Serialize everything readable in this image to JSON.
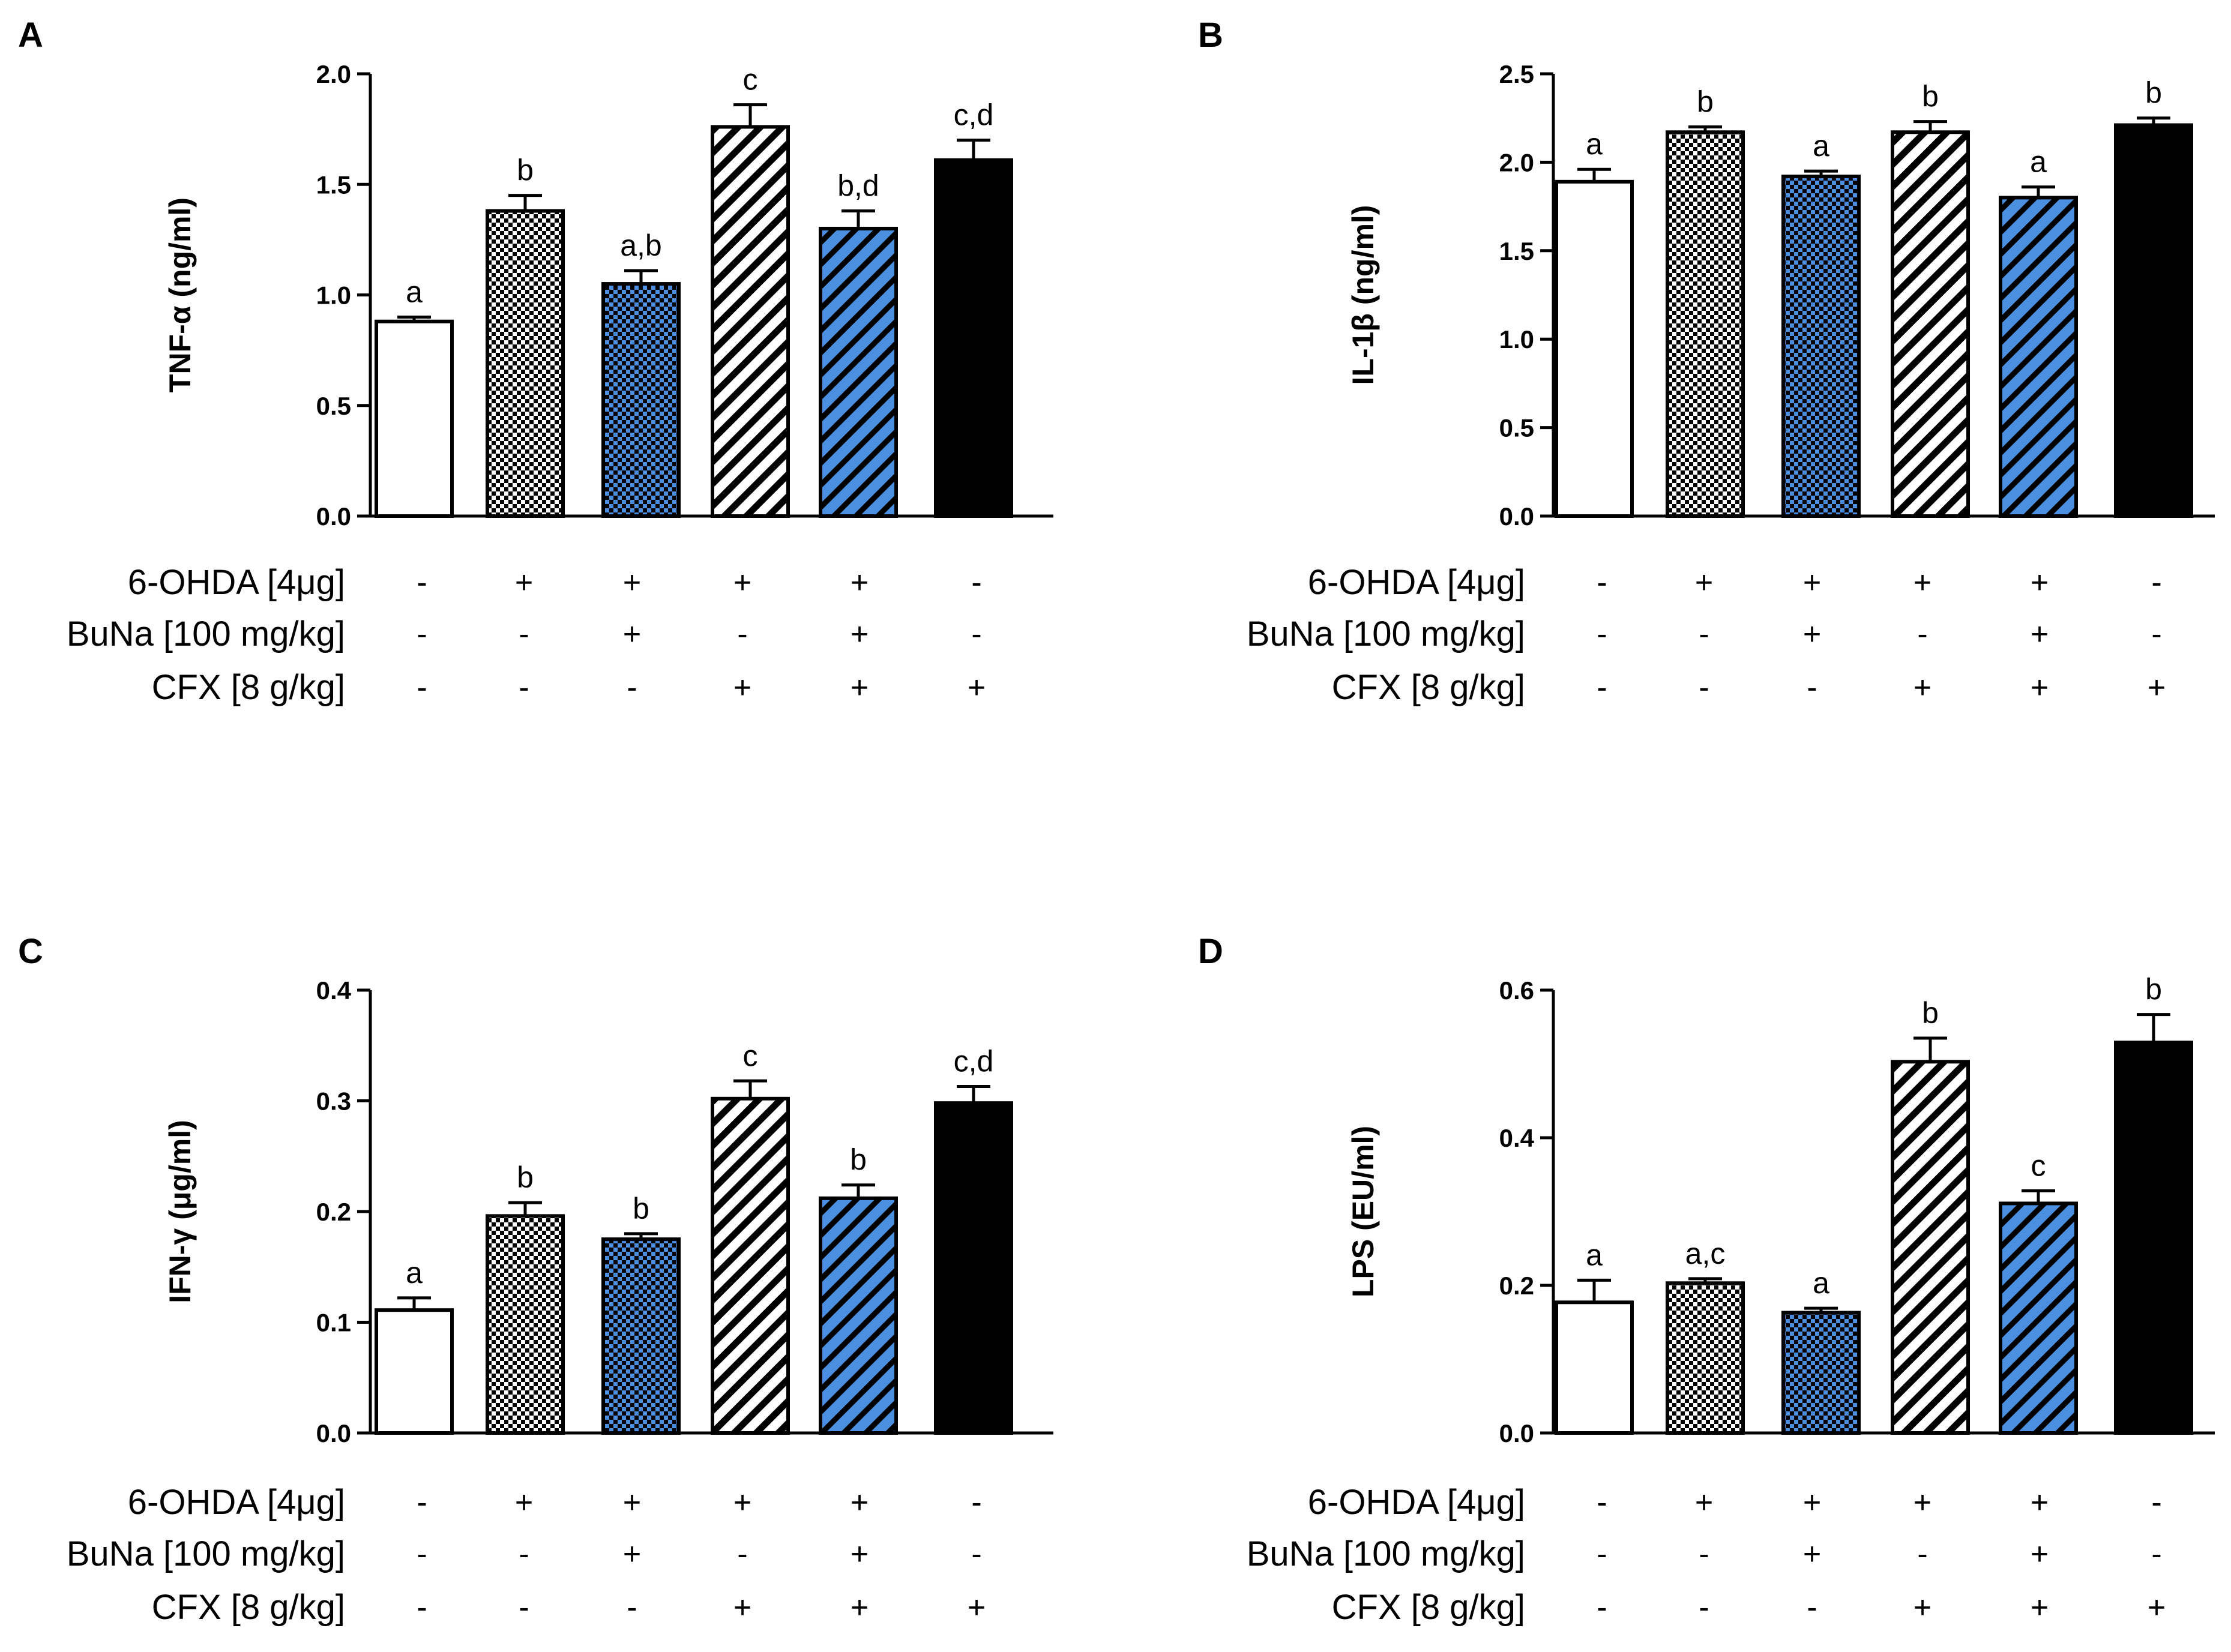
{
  "figure": {
    "row_labels": [
      "6-OHDA [4μg]",
      "BuNa [100 mg/kg]",
      "CFX [8 g/kg]"
    ],
    "treatment_signs": [
      [
        "-",
        "+",
        "+",
        "+",
        "+",
        "-"
      ],
      [
        "-",
        "-",
        "+",
        "-",
        "+",
        "-"
      ],
      [
        "-",
        "-",
        "-",
        "+",
        "+",
        "+"
      ]
    ],
    "colors": {
      "white": "#ffffff",
      "blue": "#4a8fe0",
      "black": "#000000",
      "outline": "#000000"
    },
    "bar_patterns": [
      "solid-white",
      "checker-white",
      "checker-blue",
      "hatch-white",
      "hatch-blue",
      "solid-black"
    ]
  },
  "chart_data": [
    {
      "panel": "A",
      "type": "bar",
      "ylabel": "TNF-α (ng/ml)",
      "ylim": [
        0,
        2.0
      ],
      "yticks": [
        "0.0",
        "0.5",
        "1.0",
        "1.5",
        "2.0"
      ],
      "ytick_values": [
        0,
        0.5,
        1.0,
        1.5,
        2.0
      ],
      "groups": [
        "6-OHDA-/BuNa-/CFX-",
        "6-OHDA+",
        "6-OHDA+/BuNa+",
        "6-OHDA+/CFX+",
        "6-OHDA+/BuNa+/CFX+",
        "CFX+"
      ],
      "values": [
        0.88,
        1.38,
        1.05,
        1.76,
        1.3,
        1.61
      ],
      "errors": [
        0.02,
        0.07,
        0.06,
        0.1,
        0.08,
        0.09
      ],
      "letters": [
        "a",
        "b",
        "a,b",
        "c",
        "b,d",
        "c,d"
      ]
    },
    {
      "panel": "B",
      "type": "bar",
      "ylabel": "IL-1β (ng/ml)",
      "ylim": [
        0,
        2.5
      ],
      "yticks": [
        "0.0",
        "0.5",
        "1.0",
        "1.5",
        "2.0",
        "2.5"
      ],
      "ytick_values": [
        0,
        0.5,
        1.0,
        1.5,
        2.0,
        2.5
      ],
      "groups": [
        "6-OHDA-/BuNa-/CFX-",
        "6-OHDA+",
        "6-OHDA+/BuNa+",
        "6-OHDA+/CFX+",
        "6-OHDA+/BuNa+/CFX+",
        "CFX+"
      ],
      "values": [
        1.89,
        2.17,
        1.92,
        2.17,
        1.8,
        2.21
      ],
      "errors": [
        0.07,
        0.03,
        0.03,
        0.06,
        0.06,
        0.04
      ],
      "letters": [
        "a",
        "b",
        "a",
        "b",
        "a",
        "b"
      ]
    },
    {
      "panel": "C",
      "type": "bar",
      "ylabel": "IFN-γ (μg/ml)",
      "ylim": [
        0,
        0.4
      ],
      "yticks": [
        "0.0",
        "0.1",
        "0.2",
        "0.3",
        "0.4"
      ],
      "ytick_values": [
        0,
        0.1,
        0.2,
        0.3,
        0.4
      ],
      "groups": [
        "6-OHDA-/BuNa-/CFX-",
        "6-OHDA+",
        "6-OHDA+/BuNa+",
        "6-OHDA+/CFX+",
        "6-OHDA+/BuNa+/CFX+",
        "CFX+"
      ],
      "values": [
        0.111,
        0.196,
        0.175,
        0.302,
        0.212,
        0.298
      ],
      "errors": [
        0.011,
        0.012,
        0.005,
        0.016,
        0.012,
        0.015
      ],
      "letters": [
        "a",
        "b",
        "b",
        "c",
        "b",
        "c,d"
      ]
    },
    {
      "panel": "D",
      "type": "bar",
      "ylabel": "LPS (EU/ml)",
      "ylim": [
        0,
        0.6
      ],
      "yticks": [
        "0.0",
        "0.2",
        "0.4",
        "0.6"
      ],
      "ytick_values": [
        0,
        0.2,
        0.4,
        0.6
      ],
      "groups": [
        "6-OHDA-/BuNa-/CFX-",
        "6-OHDA+",
        "6-OHDA+/BuNa+",
        "6-OHDA+/CFX+",
        "6-OHDA+/BuNa+/CFX+",
        "CFX+"
      ],
      "values": [
        0.177,
        0.203,
        0.163,
        0.503,
        0.311,
        0.529
      ],
      "errors": [
        0.03,
        0.006,
        0.006,
        0.032,
        0.017,
        0.038
      ],
      "letters": [
        "a",
        "a,c",
        "a",
        "b",
        "c",
        "b"
      ]
    }
  ]
}
